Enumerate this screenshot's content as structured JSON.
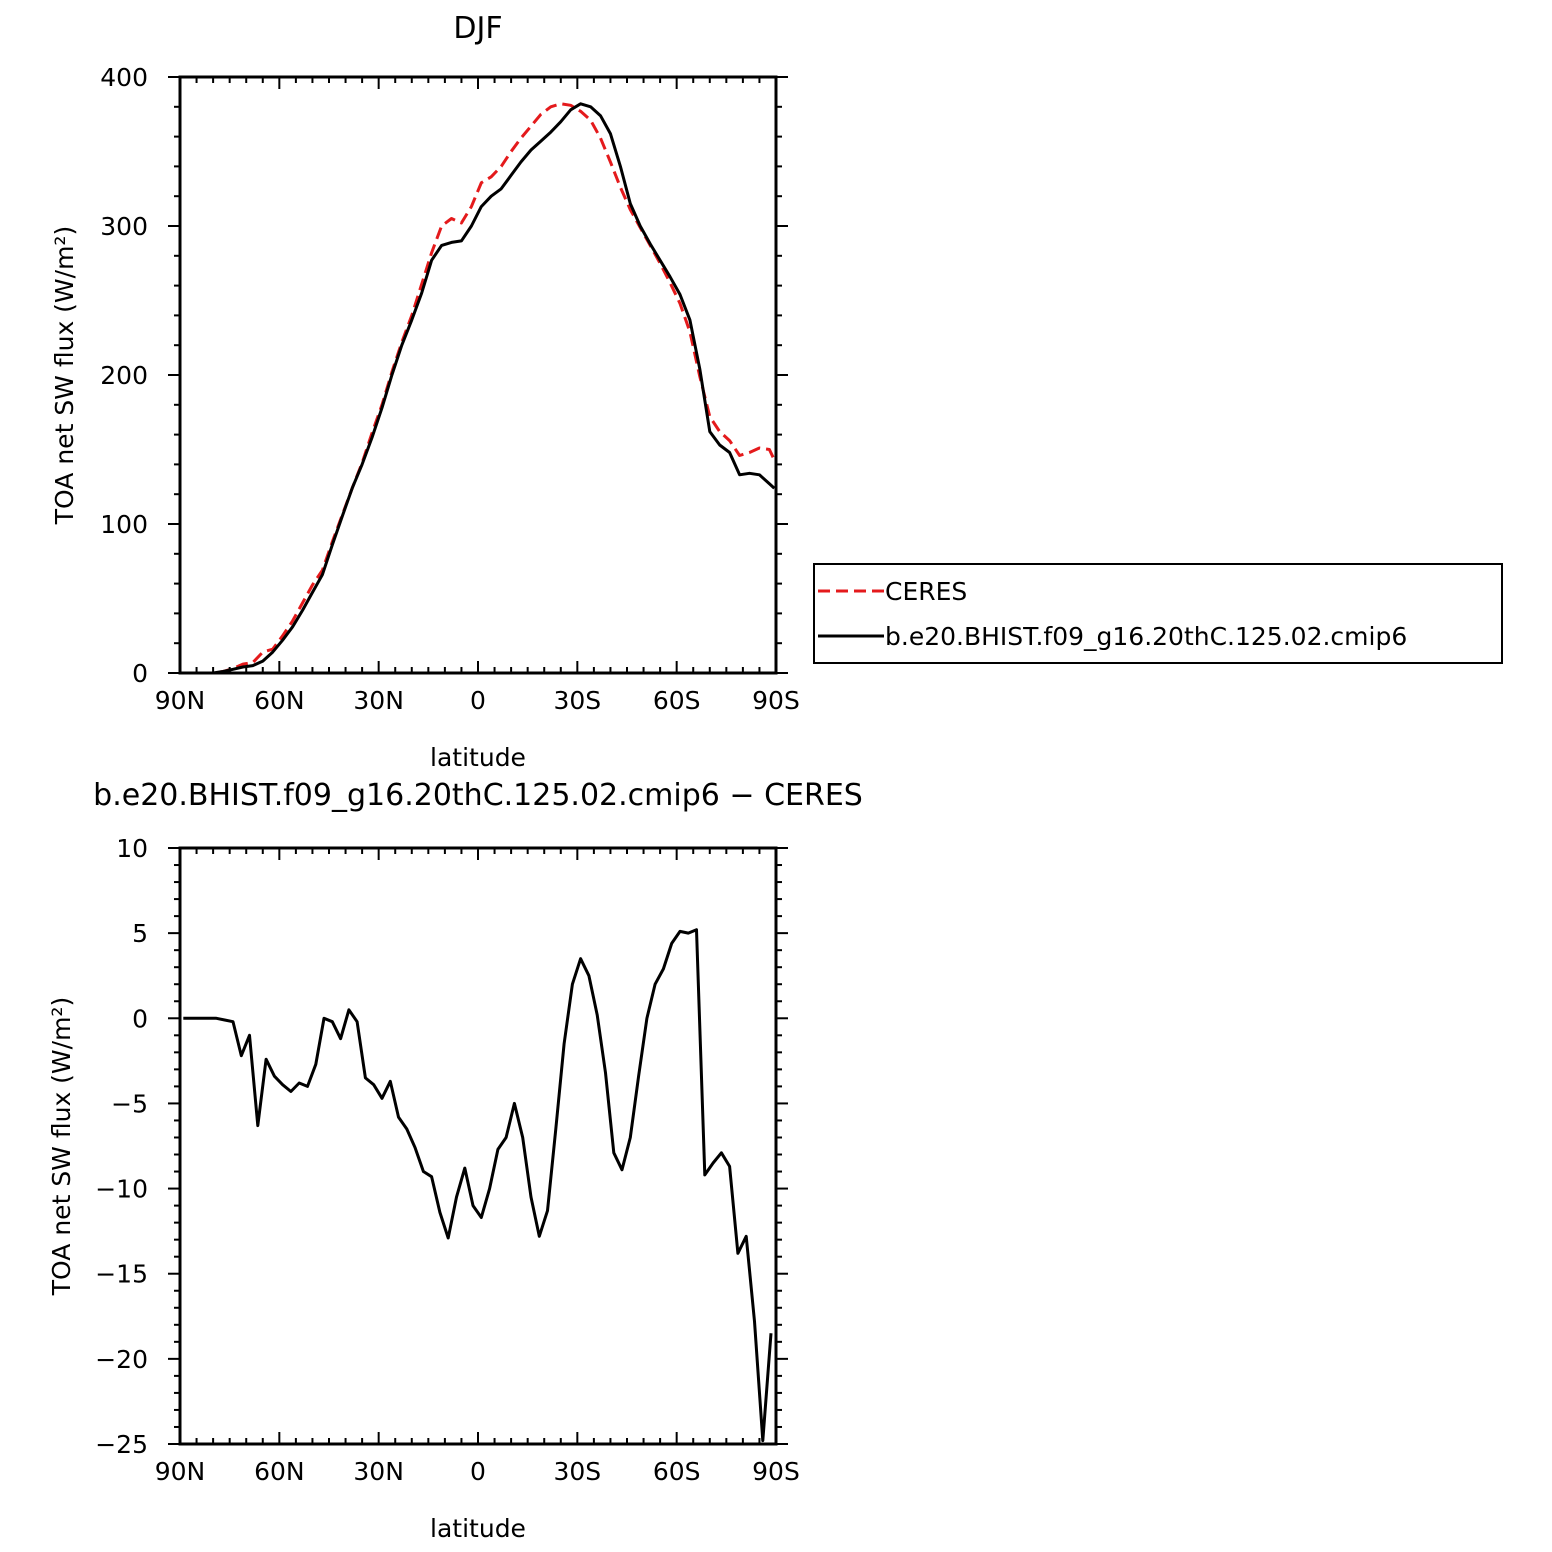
{
  "chart_data": [
    {
      "type": "line",
      "title": "DJF",
      "xlabel": "latitude",
      "ylabel": "TOA net SW flux (W/m²)",
      "xlim": [
        90,
        -90
      ],
      "ylim": [
        0,
        400
      ],
      "x_ticks": [
        90,
        60,
        30,
        0,
        -30,
        -60,
        -90
      ],
      "x_tick_labels": [
        "90N",
        "60N",
        "30N",
        "0",
        "30S",
        "60S",
        "90S"
      ],
      "y_ticks": [
        0,
        100,
        200,
        300,
        400
      ],
      "y_tick_labels": [
        "0",
        "100",
        "200",
        "300",
        "400"
      ],
      "legend": {
        "position": "right",
        "entries": [
          "CERES",
          "b.e20.BHIST.f09_g16.20thC.125.02.cmip6"
        ]
      },
      "series": [
        {
          "name": "CERES",
          "color": "#e41a1c",
          "dash": "dashed",
          "x": [
            89,
            86,
            83,
            80,
            77,
            74,
            71,
            68,
            65,
            62,
            59,
            56,
            53,
            50,
            47,
            44,
            41,
            38,
            35,
            32,
            29,
            26,
            23,
            20,
            17,
            14,
            11,
            8,
            5,
            2,
            -1,
            -4,
            -7,
            -10,
            -13,
            -16,
            -19,
            -22,
            -25,
            -28,
            -31,
            -34,
            -37,
            -40,
            -43,
            -46,
            -49,
            -52,
            -55,
            -58,
            -61,
            -64,
            -67,
            -70,
            -73,
            -76,
            -79,
            -82,
            -85,
            -88,
            -89.5
          ],
          "y": [
            0,
            0,
            0,
            0,
            1,
            3,
            6,
            7,
            14,
            16,
            25,
            35,
            47,
            59,
            69,
            88,
            106,
            124,
            141,
            161,
            180,
            202,
            222,
            240,
            261,
            282,
            300,
            305,
            302,
            313,
            329,
            333,
            340,
            350,
            359,
            367,
            375,
            380,
            382,
            381,
            377,
            371,
            359,
            343,
            326,
            311,
            299,
            287,
            275,
            262,
            248,
            229,
            199,
            172,
            162,
            156,
            146,
            148,
            151,
            150,
            143
          ]
        },
        {
          "name": "b.e20.BHIST.f09_g16.20thC.125.02.cmip6",
          "color": "#000000",
          "dash": "solid",
          "x": [
            89,
            86,
            83,
            80,
            77,
            74,
            71,
            68,
            65,
            62,
            59,
            56,
            53,
            50,
            47,
            44,
            41,
            38,
            35,
            32,
            29,
            26,
            23,
            20,
            17,
            14,
            11,
            8,
            5,
            2,
            -1,
            -4,
            -7,
            -10,
            -13,
            -16,
            -19,
            -22,
            -25,
            -28,
            -31,
            -34,
            -37,
            -40,
            -43,
            -46,
            -49,
            -52,
            -55,
            -58,
            -61,
            -64,
            -67,
            -70,
            -73,
            -76,
            -79,
            -82,
            -85,
            -88,
            -89.5
          ],
          "y": [
            0,
            0,
            0,
            0,
            1,
            2.5,
            4,
            5,
            8,
            14,
            22,
            31,
            42,
            54,
            66,
            86,
            105,
            124,
            140,
            158,
            178,
            200,
            220,
            237,
            255,
            277,
            287,
            289,
            290,
            300,
            313,
            320,
            325,
            334,
            343,
            351,
            357,
            363,
            370,
            378,
            382,
            380,
            374,
            362,
            340,
            315,
            300,
            288,
            277,
            266,
            254,
            237,
            204,
            162,
            153,
            148,
            133,
            134,
            133,
            127,
            124
          ]
        }
      ]
    },
    {
      "type": "line",
      "title": "b.e20.BHIST.f09_g16.20thC.125.02.cmip6 − CERES",
      "xlabel": "latitude",
      "ylabel": "TOA net SW flux (W/m²)",
      "xlim": [
        90,
        -90
      ],
      "ylim": [
        -25,
        10
      ],
      "x_ticks": [
        90,
        60,
        30,
        0,
        -30,
        -60,
        -90
      ],
      "x_tick_labels": [
        "90N",
        "60N",
        "30N",
        "0",
        "30S",
        "60S",
        "90S"
      ],
      "y_ticks": [
        10,
        5,
        0,
        -5,
        -10,
        -15,
        -20,
        -25
      ],
      "y_tick_labels": [
        "10",
        "5",
        "0",
        "−5",
        "−10",
        "−15",
        "−20",
        "−25"
      ],
      "series": [
        {
          "color": "#000000",
          "dash": "solid",
          "x": [
            89,
            86.5,
            84,
            81.5,
            79,
            76.5,
            74,
            71.5,
            69,
            66.5,
            64,
            61.5,
            59,
            56.5,
            54,
            51.5,
            49,
            46.5,
            44,
            41.5,
            39,
            36.5,
            34,
            31.5,
            29,
            26.5,
            24,
            21.5,
            19,
            16.5,
            14,
            11.5,
            9,
            6.5,
            4,
            1.5,
            -1,
            -3.5,
            -6,
            -8.5,
            -11,
            -13.5,
            -16,
            -18.5,
            -21,
            -23.5,
            -26,
            -28.5,
            -31,
            -33.5,
            -36,
            -38.5,
            -41,
            -43.5,
            -46,
            -48.5,
            -51,
            -53.5,
            -56,
            -58.5,
            -61,
            -63.5,
            -66,
            -68.5,
            -71,
            -73.5,
            -76,
            -78.5,
            -81,
            -83.5,
            -86,
            -88.5
          ],
          "y": [
            0,
            0,
            0,
            0,
            0,
            -0.1,
            -0.2,
            -2.2,
            -1,
            -6.3,
            -2.4,
            -3.4,
            -3.9,
            -4.3,
            -3.8,
            -4,
            -2.7,
            0,
            -0.2,
            -1.2,
            0.5,
            -0.2,
            -3.5,
            -3.9,
            -4.7,
            -3.7,
            -5.8,
            -6.5,
            -7.6,
            -9,
            -9.3,
            -11.4,
            -12.9,
            -10.5,
            -8.8,
            -11,
            -11.7,
            -10,
            -7.7,
            -7,
            -5,
            -7,
            -10.5,
            -12.8,
            -11.3,
            -6.5,
            -1.5,
            2,
            3.5,
            2.5,
            0.2,
            -3.2,
            -7.9,
            -8.9,
            -7,
            -3.4,
            0,
            2,
            2.9,
            4.4,
            5.1,
            5,
            5.2,
            -9.2,
            -8.5,
            -7.9,
            -8.7,
            -13.8,
            -12.8,
            -17.8,
            -24.8,
            -18.5
          ]
        }
      ]
    }
  ]
}
